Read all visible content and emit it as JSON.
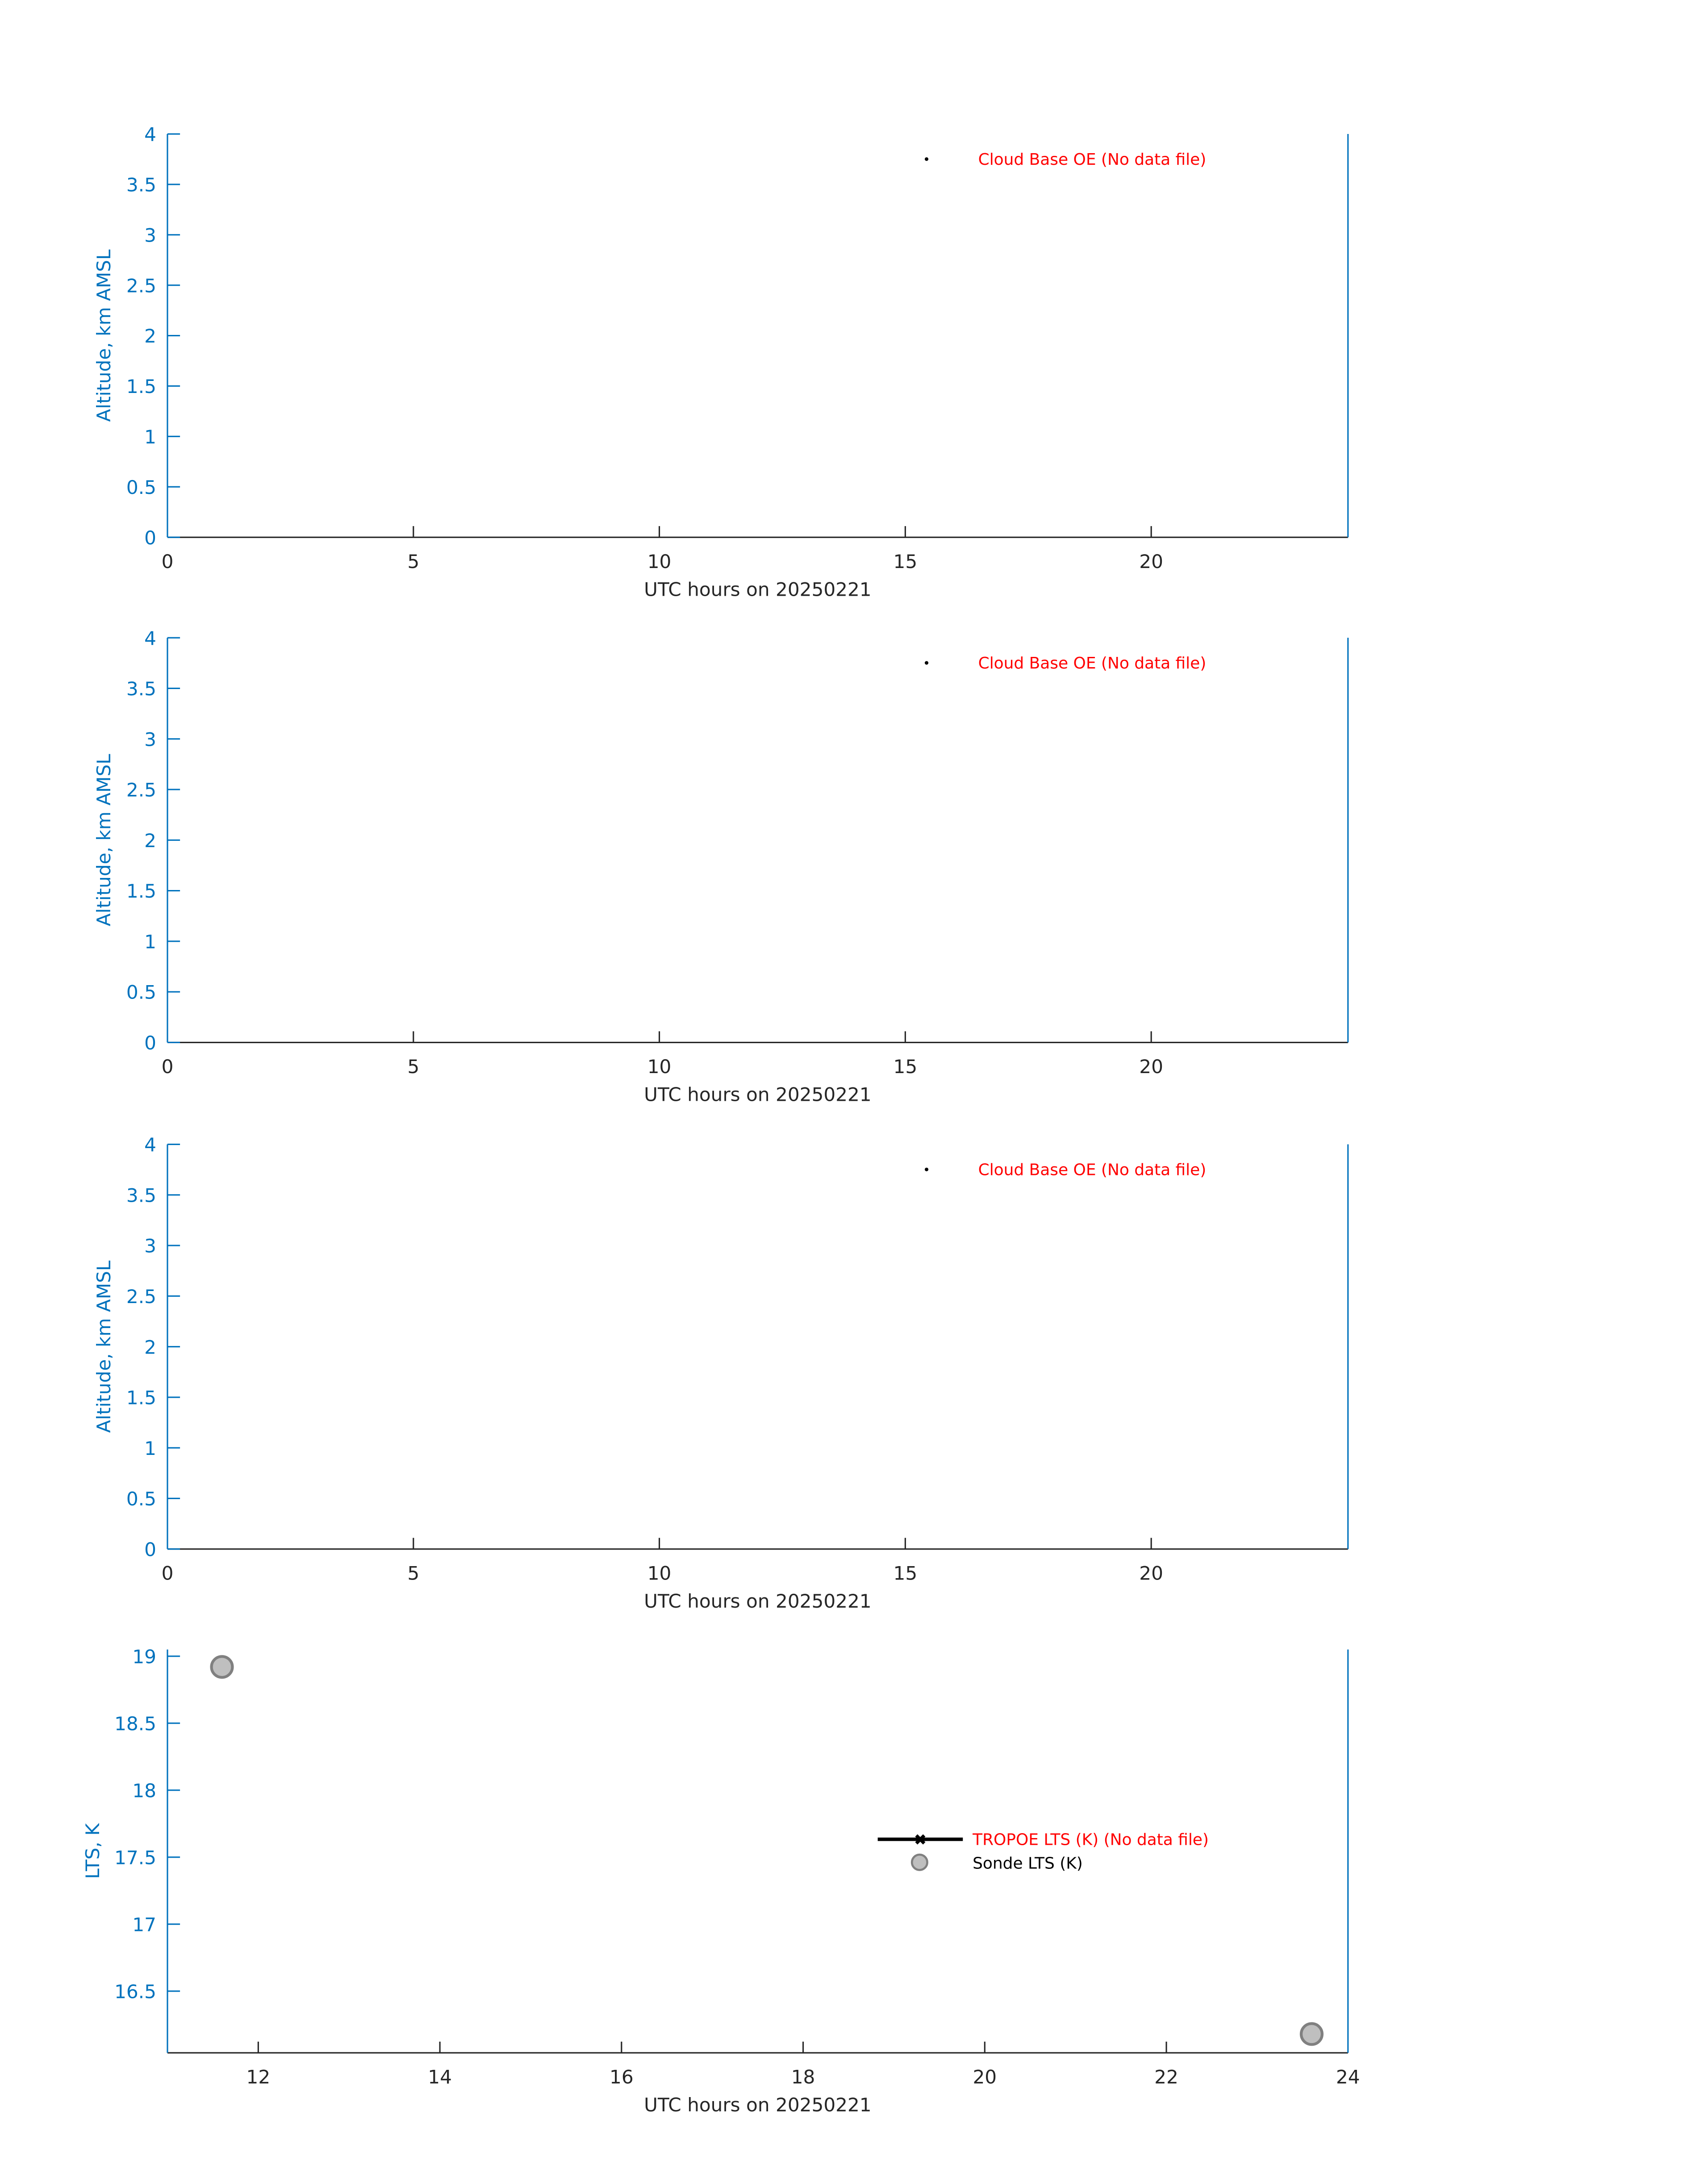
{
  "colors": {
    "axis_y": "#0072BD",
    "axis_x": "#262626",
    "no_data": "#FF0000",
    "legend_text": "#000000",
    "sonde_fill": "#BFBFBF",
    "sonde_edge": "#808080"
  },
  "chart_data": [
    {
      "type": "scatter",
      "xlabel": "UTC hours on 20250221",
      "ylabel": "Altitude, km AMSL",
      "xlim": [
        0,
        24
      ],
      "ylim": [
        0,
        4
      ],
      "xticks": [
        "0",
        "5",
        "10",
        "15",
        "20"
      ],
      "yticks": [
        "0",
        "0.5",
        "1",
        "1.5",
        "2",
        "2.5",
        "3",
        "3.5",
        "4"
      ],
      "grid": false,
      "legend_placement": "top-right",
      "series": [
        {
          "name": "Cloud Base OE (No data file)",
          "marker": "dot",
          "color": "#000000",
          "points": []
        }
      ]
    },
    {
      "type": "scatter",
      "xlabel": "UTC hours on 20250221",
      "ylabel": "Altitude, km AMSL",
      "xlim": [
        0,
        24
      ],
      "ylim": [
        0,
        4
      ],
      "xticks": [
        "0",
        "5",
        "10",
        "15",
        "20"
      ],
      "yticks": [
        "0",
        "0.5",
        "1",
        "1.5",
        "2",
        "2.5",
        "3",
        "3.5",
        "4"
      ],
      "grid": false,
      "legend_placement": "top-right",
      "series": [
        {
          "name": "Cloud Base OE (No data file)",
          "marker": "dot",
          "color": "#000000",
          "points": []
        }
      ]
    },
    {
      "type": "scatter",
      "xlabel": "UTC hours on 20250221",
      "ylabel": "Altitude, km AMSL",
      "xlim": [
        0,
        24
      ],
      "ylim": [
        0,
        4
      ],
      "xticks": [
        "0",
        "5",
        "10",
        "15",
        "20"
      ],
      "yticks": [
        "0",
        "0.5",
        "1",
        "1.5",
        "2",
        "2.5",
        "3",
        "3.5",
        "4"
      ],
      "grid": false,
      "legend_placement": "top-right",
      "series": [
        {
          "name": "Cloud Base OE (No data file)",
          "marker": "dot",
          "color": "#000000",
          "points": []
        }
      ]
    },
    {
      "type": "scatter",
      "xlabel": "UTC hours on 20250221",
      "ylabel": "LTS, K",
      "xlim": [
        11,
        24
      ],
      "ylim": [
        16.04,
        19.05
      ],
      "xticks": [
        "12",
        "14",
        "16",
        "18",
        "20",
        "22",
        "24"
      ],
      "yticks": [
        "16.5",
        "17",
        "17.5",
        "18",
        "18.5",
        "19"
      ],
      "grid": false,
      "legend_placement": "right",
      "series": [
        {
          "name": "TROPOE LTS (K) (No data file)",
          "marker": "line-x",
          "color": "#000000",
          "points": []
        },
        {
          "name": "Sonde LTS (K)",
          "marker": "circle",
          "color": "#BFBFBF",
          "points": [
            {
              "x": 11.6,
              "y": 18.92
            },
            {
              "x": 23.6,
              "y": 16.18
            }
          ]
        }
      ]
    }
  ]
}
